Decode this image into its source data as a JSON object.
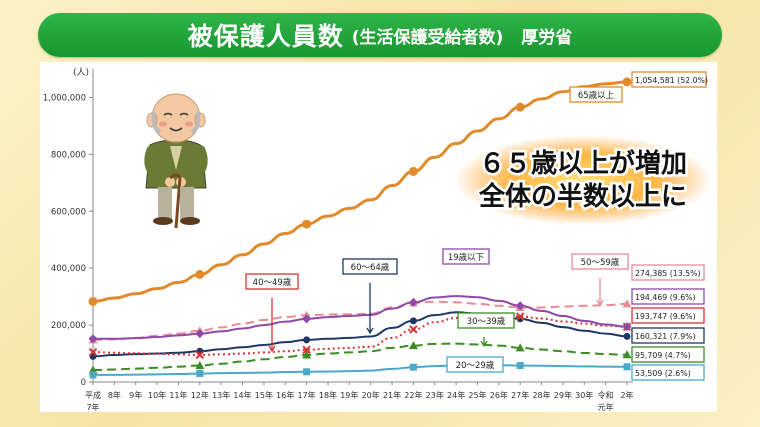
{
  "banner": {
    "title": "被保護人員数",
    "subtitle": "(生活保護受給者数)",
    "source": "厚労省"
  },
  "colors": {
    "s65": "#e08a2c",
    "s6064": "#1f3763",
    "s5059": "#e88b94",
    "s4049": "#d83232",
    "s19": "#8e4aa6",
    "s3039": "#3b8d24",
    "s2029": "#4aa8c8"
  },
  "icons": {
    "illustration": "elderly-man-with-cane-icon"
  },
  "callout": {
    "line1": "６５歳以上が増加",
    "line2": "全体の半数以上に"
  },
  "chart_data": {
    "type": "line",
    "yunit": "(人)",
    "ylim": [
      0,
      1100000
    ],
    "yticks": [
      {
        "v": 0,
        "label": "0"
      },
      {
        "v": 200000,
        "label": "200,000"
      },
      {
        "v": 400000,
        "label": "400,000"
      },
      {
        "v": 600000,
        "label": "600,000"
      },
      {
        "v": 800000,
        "label": "800,000"
      },
      {
        "v": 1000000,
        "label": "1,000,000"
      }
    ],
    "x": [
      "平成7年",
      "8年",
      "9年",
      "10年",
      "11年",
      "12年",
      "13年",
      "14年",
      "15年",
      "16年",
      "17年",
      "18年",
      "19年",
      "20年",
      "21年",
      "22年",
      "23年",
      "24年",
      "25年",
      "26年",
      "27年",
      "28年",
      "29年",
      "30年",
      "令和元年",
      "2年"
    ],
    "xtick_labels": [
      {
        "l1": "平成",
        "l2": "7年"
      },
      {
        "l1": "8年",
        "l2": ""
      },
      {
        "l1": "9年",
        "l2": ""
      },
      {
        "l1": "10年",
        "l2": ""
      },
      {
        "l1": "11年",
        "l2": ""
      },
      {
        "l1": "12年",
        "l2": ""
      },
      {
        "l1": "13年",
        "l2": ""
      },
      {
        "l1": "14年",
        "l2": ""
      },
      {
        "l1": "15年",
        "l2": ""
      },
      {
        "l1": "16年",
        "l2": ""
      },
      {
        "l1": "17年",
        "l2": ""
      },
      {
        "l1": "18年",
        "l2": ""
      },
      {
        "l1": "19年",
        "l2": ""
      },
      {
        "l1": "20年",
        "l2": ""
      },
      {
        "l1": "21年",
        "l2": ""
      },
      {
        "l1": "22年",
        "l2": ""
      },
      {
        "l1": "23年",
        "l2": ""
      },
      {
        "l1": "24年",
        "l2": ""
      },
      {
        "l1": "25年",
        "l2": ""
      },
      {
        "l1": "26年",
        "l2": ""
      },
      {
        "l1": "27年",
        "l2": ""
      },
      {
        "l1": "28年",
        "l2": ""
      },
      {
        "l1": "29年",
        "l2": ""
      },
      {
        "l1": "30年",
        "l2": ""
      },
      {
        "l1": "令和",
        "l2": "元年"
      },
      {
        "l1": "2年",
        "l2": ""
      }
    ],
    "series": [
      {
        "name": "65歳以上",
        "key": "s65",
        "style": "solid",
        "width": 3,
        "marker": "circle",
        "values": [
          283000,
          295000,
          310000,
          328000,
          350000,
          378000,
          412000,
          447000,
          485000,
          522000,
          555000,
          583000,
          610000,
          640000,
          690000,
          740000,
          790000,
          838000,
          882000,
          925000,
          966000,
          995000,
          1020000,
          1038000,
          1048000,
          1054581
        ],
        "end_label": "1,054,581 (52.0%)"
      },
      {
        "name": "60〜64歳",
        "key": "s6064",
        "style": "solid",
        "width": 2,
        "marker": "circle",
        "values": [
          90000,
          95000,
          98000,
          100000,
          103000,
          108000,
          115000,
          122000,
          130000,
          140000,
          148000,
          152000,
          155000,
          160000,
          190000,
          215000,
          235000,
          245000,
          240000,
          232000,
          222000,
          208000,
          193000,
          180000,
          170000,
          160321
        ],
        "end_label": "160,321 (7.9%)"
      },
      {
        "name": "50〜59歳",
        "key": "s5059",
        "style": "dashed",
        "width": 2,
        "marker": "triangle",
        "values": [
          148000,
          150000,
          155000,
          162000,
          170000,
          180000,
          192000,
          205000,
          218000,
          228000,
          235000,
          237000,
          238000,
          240000,
          262000,
          278000,
          282000,
          280000,
          275000,
          268000,
          262000,
          262000,
          265000,
          268000,
          270000,
          274385
        ],
        "end_label": "274,385 (13.5%)"
      },
      {
        "name": "40〜49歳",
        "key": "s4049",
        "style": "dotted",
        "width": 2,
        "marker": "cross",
        "values": [
          105000,
          103000,
          101000,
          99000,
          97000,
          95000,
          97000,
          100000,
          104000,
          108000,
          113000,
          117000,
          120000,
          124000,
          155000,
          185000,
          210000,
          225000,
          232000,
          233000,
          230000,
          223000,
          213000,
          205000,
          198000,
          193747
        ],
        "end_label": "193,747 (9.6%)"
      },
      {
        "name": "19歳以下",
        "key": "s19",
        "style": "solid",
        "width": 2,
        "marker": "diamond",
        "values": [
          152000,
          152000,
          154000,
          158000,
          164000,
          170000,
          178000,
          188000,
          200000,
          212000,
          222000,
          228000,
          232000,
          236000,
          258000,
          280000,
          297000,
          302000,
          298000,
          285000,
          268000,
          250000,
          232000,
          215000,
          202000,
          194469
        ],
        "end_label": "194,469 (9.6%)"
      },
      {
        "name": "30〜39歳",
        "key": "s3039",
        "style": "dashed",
        "width": 2,
        "marker": "triangle",
        "values": [
          42000,
          44000,
          47000,
          50000,
          54000,
          58000,
          64000,
          72000,
          80000,
          88000,
          95000,
          100000,
          104000,
          108000,
          120000,
          128000,
          134000,
          135000,
          132000,
          128000,
          120000,
          114000,
          108000,
          102000,
          98000,
          95709
        ],
        "end_label": "95,709 (4.7%)"
      },
      {
        "name": "20〜29歳",
        "key": "s2029",
        "style": "solid",
        "width": 2,
        "marker": "square",
        "values": [
          25000,
          25000,
          26000,
          27000,
          28000,
          30000,
          31000,
          32000,
          33000,
          35000,
          36000,
          37000,
          38000,
          40000,
          46000,
          52000,
          56000,
          58000,
          59000,
          59000,
          58000,
          57000,
          56000,
          55000,
          54000,
          53509
        ],
        "end_label": "53,509 (2.6%)"
      }
    ],
    "series_labels": [
      {
        "text": "65歳以上",
        "key": "s65"
      },
      {
        "text": "60〜64歳",
        "key": "s6064"
      },
      {
        "text": "19歳以下",
        "key": "s19"
      },
      {
        "text": "50〜59歳",
        "key": "s5059"
      },
      {
        "text": "40〜49歳",
        "key": "s4049"
      },
      {
        "text": "30〜39歳",
        "key": "s3039"
      },
      {
        "text": "20〜29歳",
        "key": "s2029"
      }
    ]
  }
}
